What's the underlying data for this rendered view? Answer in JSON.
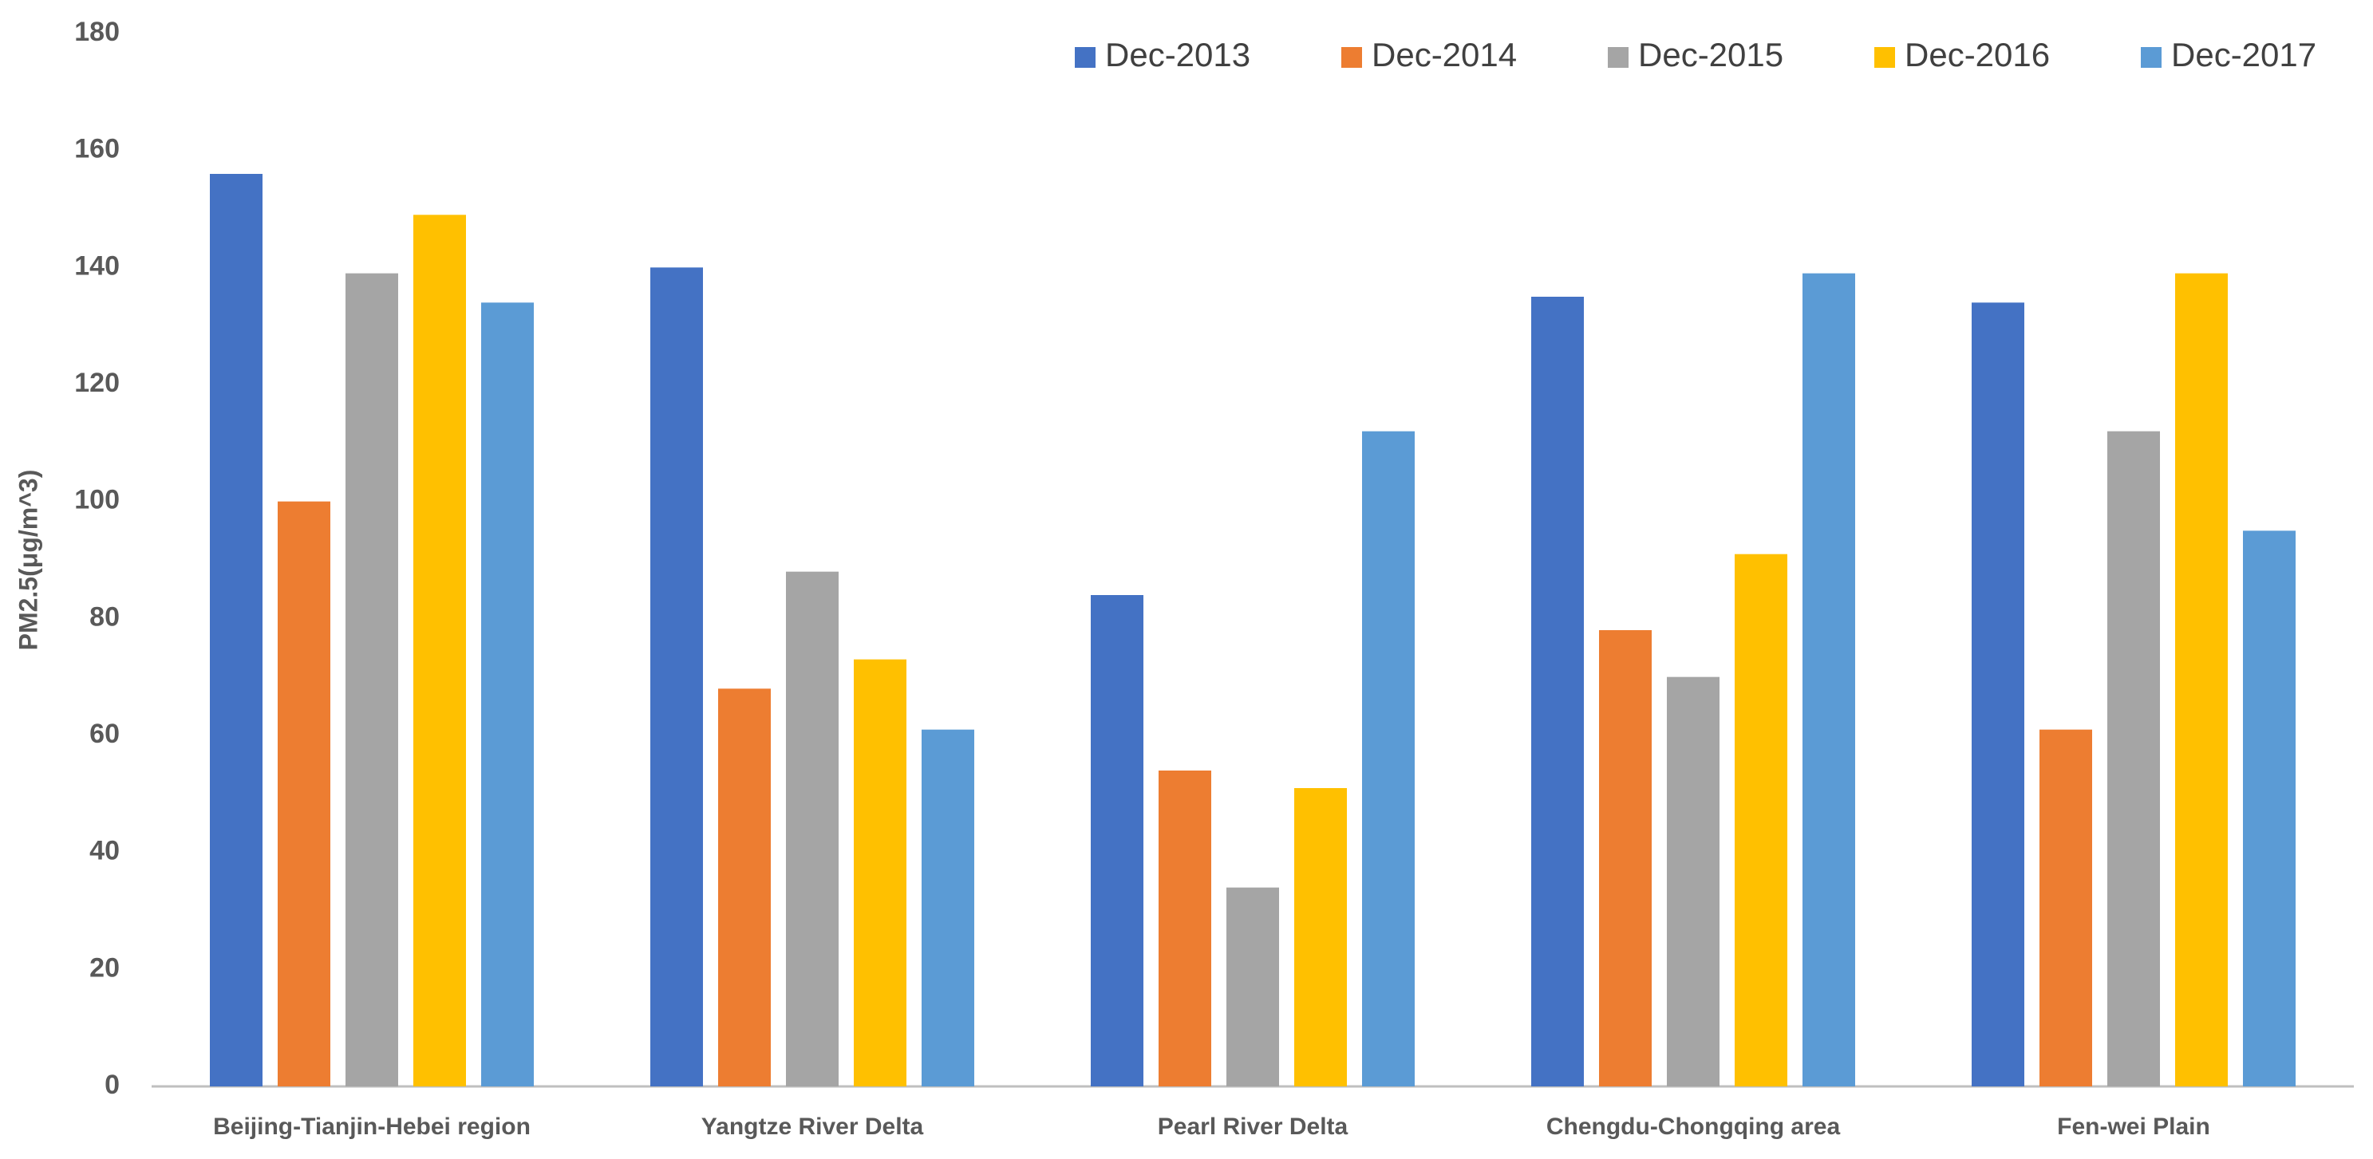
{
  "chart_data": {
    "type": "bar",
    "y_label": "PM2.5(μg/m^3)",
    "categories": [
      "Beijing-Tianjin-Hebei region",
      "Yangtze River Delta",
      "Pearl River Delta",
      "Chengdu-Chongqing area",
      "Fen-wei Plain"
    ],
    "series": [
      {
        "name": "Dec-2013",
        "color": "#4472c4",
        "values": [
          156,
          140,
          84,
          135,
          134
        ]
      },
      {
        "name": "Dec-2014",
        "color": "#ed7d31",
        "values": [
          100,
          68,
          54,
          78,
          61
        ]
      },
      {
        "name": "Dec-2015",
        "color": "#a5a5a5",
        "values": [
          139,
          88,
          34,
          70,
          112
        ]
      },
      {
        "name": "Dec-2016",
        "color": "#ffc000",
        "values": [
          149,
          73,
          51,
          91,
          139
        ]
      },
      {
        "name": "Dec-2017",
        "color": "#5b9bd5",
        "values": [
          134,
          61,
          112,
          139,
          95
        ]
      }
    ],
    "ylim": [
      0,
      180
    ],
    "yticks": [
      0,
      20,
      40,
      60,
      80,
      100,
      120,
      140,
      160,
      180
    ],
    "grid": false,
    "legend": "top-right"
  }
}
